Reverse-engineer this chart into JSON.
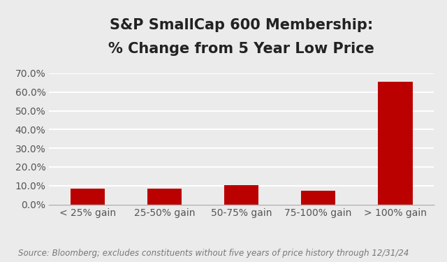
{
  "categories": [
    "< 25% gain",
    "25-50% gain",
    "50-75% gain",
    "75-100% gain",
    "> 100% gain"
  ],
  "values": [
    0.083,
    0.085,
    0.103,
    0.072,
    0.657
  ],
  "bar_color": "#bb0000",
  "title_line1": "S&P SmallCap 600 Membership:",
  "title_line2": "% Change from 5 Year Low Price",
  "ylim": [
    0,
    0.7
  ],
  "yticks": [
    0.0,
    0.1,
    0.2,
    0.3,
    0.4,
    0.5,
    0.6,
    0.7
  ],
  "ytick_labels": [
    "0.0%",
    "10.0%",
    "20.0%",
    "30.0%",
    "40.0%",
    "50.0%",
    "60.0%",
    "70.0%"
  ],
  "source_text": "Source: Bloomberg; excludes constituents without five years of price history through 12/31/24",
  "background_color": "#ebebeb",
  "title_fontsize": 15,
  "tick_fontsize": 10,
  "source_fontsize": 8.5
}
